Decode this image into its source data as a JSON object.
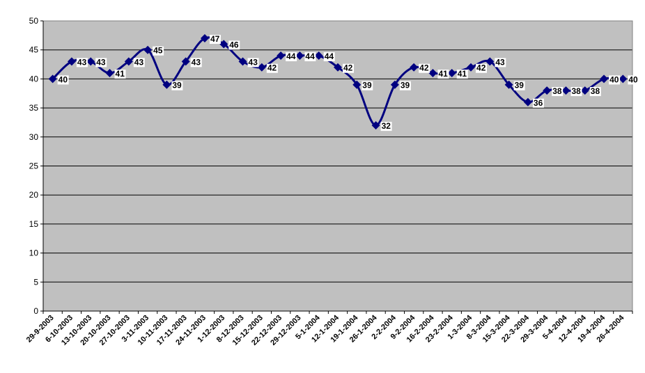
{
  "chart_data": {
    "type": "line",
    "title": "",
    "xlabel": "",
    "ylabel": "",
    "ylim": [
      0,
      50
    ],
    "yticks": [
      0,
      5,
      10,
      15,
      20,
      25,
      30,
      35,
      40,
      45,
      50
    ],
    "grid": true,
    "legend": "none",
    "colors": {
      "plot_background": "#c0c0c0",
      "line": "#000080",
      "marker": "#000080",
      "gridline": "#000000",
      "label_background": "#ffffff"
    },
    "categories": [
      "29-9-2003",
      "6-10-2003",
      "13-10-2003",
      "20-10-2003",
      "27-10-2003",
      "3-11-2003",
      "10-11-2003",
      "17-11-2003",
      "24-11-2003",
      "1-12-2003",
      "8-12-2003",
      "15-12-2003",
      "22-12-2003",
      "29-12-2003",
      "5-1-2004",
      "12-1-2004",
      "19-1-2004",
      "26-1-2004",
      "2-2-2004",
      "9-2-2004",
      "16-2-2004",
      "23-2-2004",
      "1-3-2004",
      "8-3-2004",
      "15-3-2004",
      "22-3-2004",
      "29-3-2004",
      "5-4-2004",
      "12-4-2004",
      "19-4-2004",
      "26-4-2004"
    ],
    "series": [
      {
        "values": [
          40,
          43,
          43,
          41,
          43,
          45,
          39,
          43,
          47,
          46,
          43,
          42,
          44,
          44,
          44,
          42,
          39,
          32,
          39,
          42,
          41,
          41,
          42,
          43,
          39,
          36,
          38,
          38,
          38,
          40,
          40
        ]
      }
    ]
  }
}
